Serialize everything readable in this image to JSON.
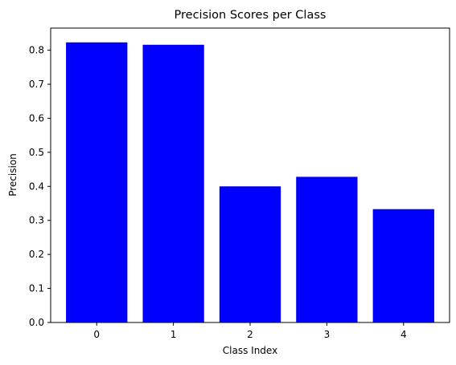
{
  "chart_data": {
    "type": "bar",
    "title": "Precision Scores per Class",
    "xlabel": "Class Index",
    "ylabel": "Precision",
    "categories": [
      "0",
      "1",
      "2",
      "3",
      "4"
    ],
    "values": [
      0.823,
      0.816,
      0.4,
      0.428,
      0.333
    ],
    "ylim": [
      0,
      0.865
    ],
    "yticks": [
      "0.0",
      "0.1",
      "0.2",
      "0.3",
      "0.4",
      "0.5",
      "0.6",
      "0.7",
      "0.8"
    ],
    "bar_color": "#0000ff",
    "grid": false,
    "legend": false
  }
}
